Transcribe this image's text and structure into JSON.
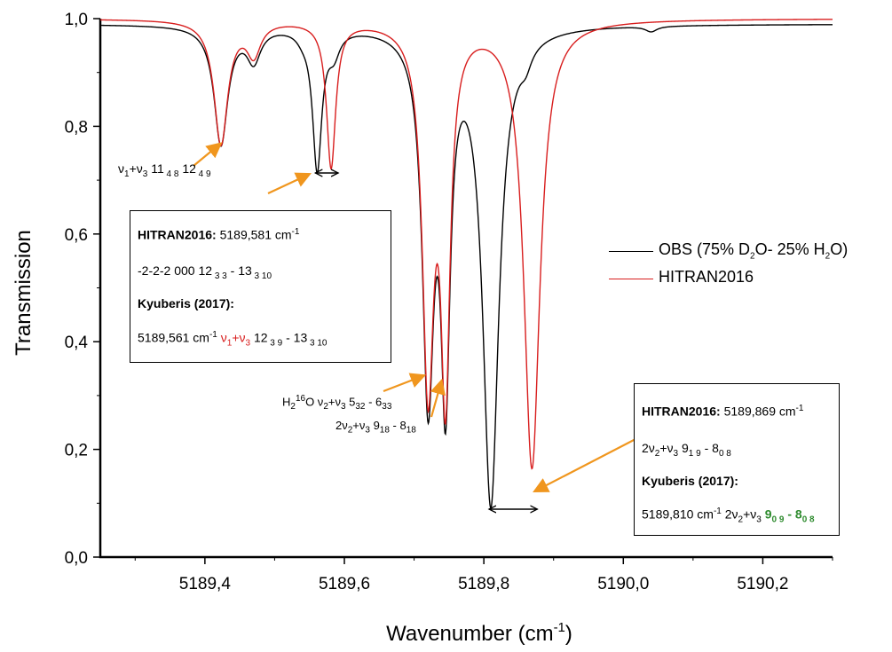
{
  "chart_data": {
    "type": "line",
    "xlabel": "Wavenumber (cm-1)",
    "xlabel_main": "Wavenumber (cm",
    "xlabel_sup": "-1",
    "xlabel_end": ")",
    "ylabel": "Transmission",
    "xlim": [
      5189.25,
      5190.3
    ],
    "ylim": [
      0.0,
      1.0
    ],
    "x_ticks": [
      "5189,4",
      "5189,6",
      "5189,8",
      "5190,0",
      "5190,2"
    ],
    "x_tick_values": [
      5189.4,
      5189.6,
      5189.8,
      5190.0,
      5190.2
    ],
    "y_ticks": [
      "0,0",
      "0,2",
      "0,4",
      "0,6",
      "0,8",
      "1,0"
    ],
    "y_tick_values": [
      0.0,
      0.2,
      0.4,
      0.6,
      0.8,
      1.0
    ],
    "legend_position": "right",
    "series": [
      {
        "name": "OBS (75% D2O- 25% H2O)",
        "color": "#000000",
        "baseline": 0.99,
        "lines": [
          {
            "center": 5189.423,
            "depth": 0.22,
            "width": 0.012
          },
          {
            "center": 5189.47,
            "depth": 0.06,
            "width": 0.012
          },
          {
            "center": 5189.561,
            "depth": 0.26,
            "width": 0.008
          },
          {
            "center": 5189.585,
            "depth": 0.04,
            "width": 0.01
          },
          {
            "center": 5189.72,
            "depth": 0.66,
            "width": 0.01
          },
          {
            "center": 5189.745,
            "depth": 0.63,
            "width": 0.008
          },
          {
            "center": 5189.81,
            "depth": 0.88,
            "width": 0.014
          },
          {
            "center": 5189.86,
            "depth": 0.03,
            "width": 0.01
          },
          {
            "center": 5189.54,
            "depth": 0.01,
            "width": 0.01
          },
          {
            "center": 5190.04,
            "depth": 0.01,
            "width": 0.01
          }
        ]
      },
      {
        "name": "HITRAN2016",
        "color": "#d81e1e",
        "baseline": 1.0,
        "lines": [
          {
            "center": 5189.423,
            "depth": 0.23,
            "width": 0.012
          },
          {
            "center": 5189.47,
            "depth": 0.06,
            "width": 0.012
          },
          {
            "center": 5189.581,
            "depth": 0.27,
            "width": 0.008
          },
          {
            "center": 5189.72,
            "depth": 0.66,
            "width": 0.01
          },
          {
            "center": 5189.745,
            "depth": 0.65,
            "width": 0.008
          },
          {
            "center": 5189.869,
            "depth": 0.83,
            "width": 0.014
          }
        ]
      }
    ]
  },
  "legend": {
    "obs_main": "OBS (75% D",
    "obs_sub1": "2",
    "obs_mid": "O- 25% H",
    "obs_sub2": "2",
    "obs_end": "O)",
    "hitran": "HITRAN2016"
  },
  "box1": {
    "l1_bold": "HITRAN2016:",
    "l1_text": " 5189,581 cm",
    "l1_sup": "-1",
    "l2": "-2-2-2  000 12",
    "l2_sub1": " 3 3",
    "l2_mid": " - 13",
    "l2_sub2": " 3 10",
    "l3_bold": "Kyuberis (2017):",
    "l4_text": "5189,561 cm",
    "l4_sup": "-1",
    "l4_nu": " ν",
    "l4_s1": "1",
    "l4_plus": "+ν",
    "l4_s3": "3",
    "l4_rest": " 12",
    "l4_sub1": " 3 9",
    "l4_mid": " -  13",
    "l4_sub2": " 3 10"
  },
  "box2": {
    "l1_bold": "HITRAN2016:",
    "l1_text": " 5189,869 cm",
    "l1_sup": "-1",
    "l2_a": "2ν",
    "l2_s2": "2",
    "l2_b": "+ν",
    "l2_s3": "3",
    "l2_c": " 9",
    "l2_sub1": "1 9",
    "l2_d": " - 8",
    "l2_sub2": "0 8",
    "l3_bold": "Kyuberis (2017):",
    "l4_text": "5189,810 cm",
    "l4_sup": "-1",
    "l4_a": " 2ν",
    "l4_s2": "2",
    "l4_b": "+ν",
    "l4_s3": "3",
    "l4_g1": " 9",
    "l4_gs1": "0 9",
    "l4_g2": " - 8",
    "l4_gs2": "0 8"
  },
  "labels": {
    "nu13_a": "ν",
    "nu13_s1": "1",
    "nu13_b": "+ν",
    "nu13_s3": "3",
    "nu13_c": " 11",
    "nu13_sub1": " 4 8",
    "nu13_d": "  12",
    "nu13_sub2": " 4 9",
    "h2o_a": "H",
    "h2o_s2": "2",
    "h2o_sup": "16",
    "h2o_b": "O ν",
    "h2o_s2b": "2",
    "h2o_c": "+ν",
    "h2o_s3": "3",
    "h2o_d": " 5",
    "h2o_sub1": "32",
    "h2o_e": " - 6",
    "h2o_sub2": "33",
    "two_a": "2ν",
    "two_s2": "2",
    "two_b": "+ν",
    "two_s3": "3",
    "two_c": "   9",
    "two_sub1": "18",
    "two_d": " - 8",
    "two_sub2": "18"
  },
  "colors": {
    "arrow": "#f0961e",
    "obs": "#000000",
    "hitran": "#d81e1e",
    "highlight": "#2e8b2e"
  }
}
